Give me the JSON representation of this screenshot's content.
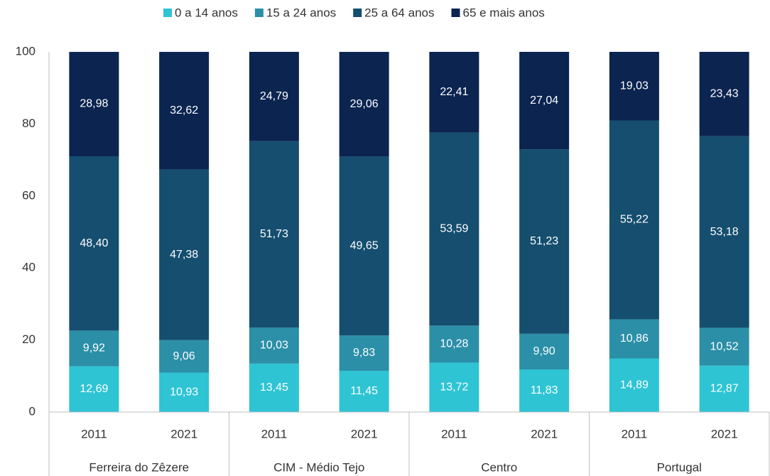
{
  "chart_data": {
    "type": "stacked_bar",
    "categories": [
      "2011",
      "2021",
      "2011",
      "2021",
      "2011",
      "2021",
      "2011",
      "2021"
    ],
    "groups": [
      "Ferreira do Zêzere",
      "CIM - Médio Tejo",
      "Centro",
      "Portugal"
    ],
    "series": [
      {
        "name": "0 a 14 anos",
        "color": "#2ec4d4",
        "values": [
          12.69,
          10.93,
          13.45,
          11.45,
          13.72,
          11.83,
          14.89,
          12.87
        ],
        "value_labels": [
          "12,69",
          "10,93",
          "13,45",
          "11,45",
          "13,72",
          "11,83",
          "14,89",
          "12,87"
        ]
      },
      {
        "name": "15 a 24 anos",
        "color": "#2b8fa8",
        "values": [
          9.92,
          9.06,
          10.03,
          9.83,
          10.28,
          9.9,
          10.86,
          10.52
        ],
        "value_labels": [
          "9,92",
          "9,06",
          "10,03",
          "9,83",
          "10,28",
          "9,90",
          "10,86",
          "10,52"
        ]
      },
      {
        "name": "25 a 64 anos",
        "color": "#154e6f",
        "values": [
          48.4,
          47.38,
          51.73,
          49.65,
          53.59,
          51.23,
          55.22,
          53.18
        ],
        "value_labels": [
          "48,40",
          "47,38",
          "51,73",
          "49,65",
          "53,59",
          "51,23",
          "55,22",
          "53,18"
        ]
      },
      {
        "name": "65 e mais anos",
        "color": "#0b2450",
        "values": [
          28.98,
          32.62,
          24.79,
          29.06,
          22.41,
          27.04,
          19.03,
          23.43
        ],
        "value_labels": [
          "28,98",
          "32,62",
          "24,79",
          "29,06",
          "22,41",
          "27,04",
          "19,03",
          "23,43"
        ]
      }
    ],
    "ylim": [
      0,
      100
    ],
    "yticks": [
      0,
      20,
      40,
      60,
      80,
      100
    ],
    "legend": "top"
  }
}
